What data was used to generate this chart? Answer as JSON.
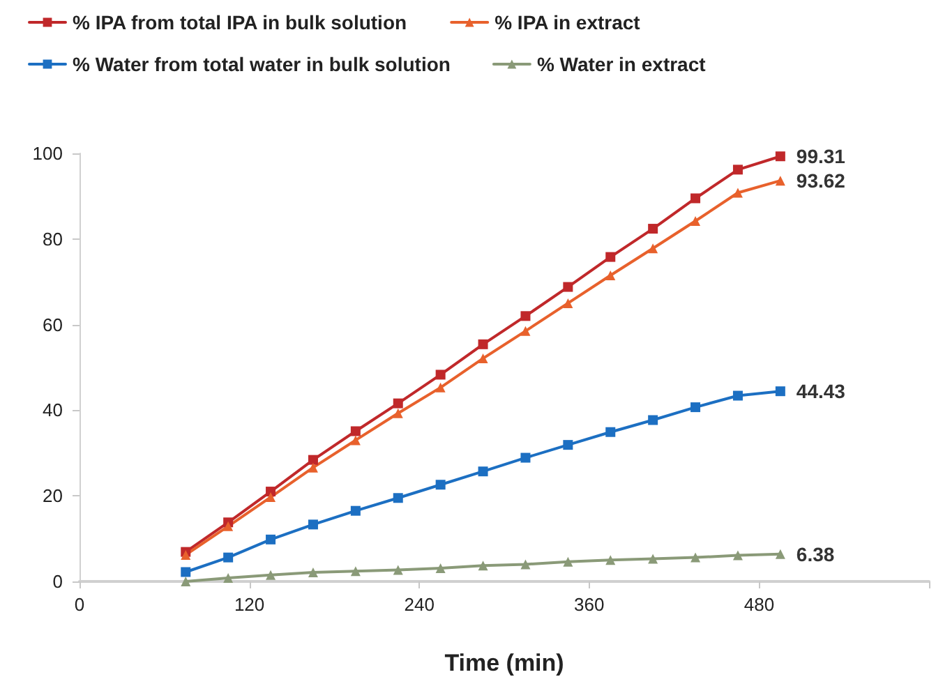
{
  "chart_data": {
    "type": "line",
    "xlabel": "Time (min)",
    "x": [
      75,
      105,
      135,
      165,
      195,
      225,
      255,
      285,
      315,
      345,
      375,
      405,
      435,
      465,
      495
    ],
    "xlim": [
      0,
      600
    ],
    "xticks": [
      0,
      120,
      240,
      360,
      480,
      {
        "value": 600,
        "label": null
      }
    ],
    "ylim": [
      0,
      100
    ],
    "yticks": [
      0,
      20,
      40,
      60,
      80,
      100
    ],
    "grid": false,
    "legend": "top",
    "line_style": "solid",
    "series": [
      {
        "name": "% IPA from total IPA in bulk solution",
        "color": "#c0282a",
        "marker": "square",
        "values": [
          6.9,
          13.8,
          21.0,
          28.4,
          35.1,
          41.6,
          48.3,
          55.4,
          62.0,
          68.8,
          75.8,
          82.4,
          89.5,
          96.2,
          99.31
        ],
        "value_labels": [
          null,
          null,
          null,
          null,
          null,
          null,
          null,
          null,
          null,
          null,
          null,
          null,
          null,
          null,
          "99.31"
        ]
      },
      {
        "name": "% IPA in extract",
        "color": "#e8612c",
        "marker": "triangle",
        "values": [
          6.2,
          12.9,
          19.7,
          26.6,
          33.0,
          39.3,
          45.3,
          52.1,
          58.5,
          65.0,
          71.5,
          77.8,
          84.2,
          90.8,
          93.62
        ],
        "value_labels": [
          null,
          null,
          null,
          null,
          null,
          null,
          null,
          null,
          null,
          null,
          null,
          null,
          null,
          null,
          "93.62"
        ]
      },
      {
        "name": "% Water from total water in bulk solution",
        "color": "#1c6fc2",
        "marker": "square",
        "values": [
          2.2,
          5.6,
          9.8,
          13.3,
          16.5,
          19.5,
          22.6,
          25.7,
          28.9,
          31.9,
          34.9,
          37.7,
          40.7,
          43.4,
          44.43
        ],
        "value_labels": [
          null,
          null,
          null,
          null,
          null,
          null,
          null,
          null,
          null,
          null,
          null,
          null,
          null,
          null,
          "44.43"
        ]
      },
      {
        "name": "% Water in extract",
        "color": "#8a9a78",
        "marker": "triangle",
        "values": [
          0.0,
          0.8,
          1.5,
          2.1,
          2.4,
          2.7,
          3.1,
          3.7,
          4.0,
          4.6,
          5.0,
          5.3,
          5.6,
          6.1,
          6.38
        ],
        "value_labels": [
          null,
          null,
          null,
          null,
          null,
          null,
          null,
          null,
          null,
          null,
          null,
          null,
          null,
          null,
          "6.38"
        ]
      }
    ]
  }
}
